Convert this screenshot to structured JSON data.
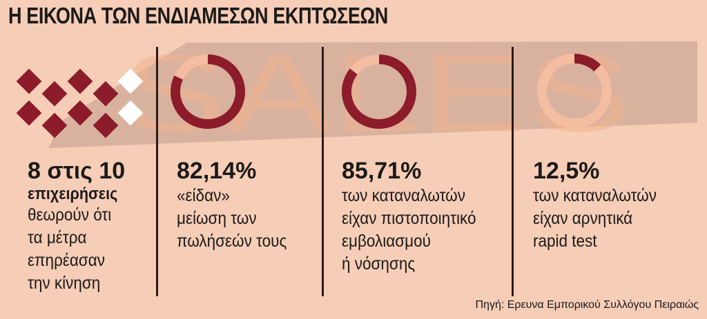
{
  "title": "Η ΕΙΚΟΝΑ ΤΩΝ ΕΝΔΙΑΜΕΣΩΝ ΕΚΠΤΩΣΕΩΝ",
  "watermark": "SALES",
  "source": "Πηγή: Ερευνα Εμπορικού Συλλόγου Πειραιώς",
  "colors": {
    "background": "#f6cdb6",
    "accent": "#8c1c2a",
    "track": "#f7bfa1",
    "band": "#c09a8d"
  },
  "stats": [
    {
      "value": "8 στις 10",
      "bold_line": "επιχειρήσεις",
      "lines": [
        "θεωρούν ότι",
        "τα μέτρα",
        "επηρέασαν",
        "την κίνηση"
      ]
    },
    {
      "value": "82,14%",
      "lines": [
        "«είδαν»",
        "μείωση των",
        "πωλήσεών τους"
      ]
    },
    {
      "value": "85,71%",
      "lines": [
        "των καταναλωτών",
        "είχαν πιστοποιητικό",
        "εμβολιασμού",
        "ή νόσησης"
      ]
    },
    {
      "value": "12,5%",
      "lines": [
        "των καταναλωτών",
        "είχαν αρνητικά",
        "rapid test"
      ]
    }
  ],
  "chart_data": [
    {
      "type": "pictogram",
      "total": 10,
      "highlighted": 8,
      "label": "8 στις 10"
    },
    {
      "type": "pie",
      "values": [
        82.14,
        17.86
      ],
      "label": "82,14%"
    },
    {
      "type": "pie",
      "values": [
        85.71,
        14.29
      ],
      "label": "85,71%"
    },
    {
      "type": "pie",
      "values": [
        12.5,
        87.5
      ],
      "label": "12,5%"
    }
  ]
}
